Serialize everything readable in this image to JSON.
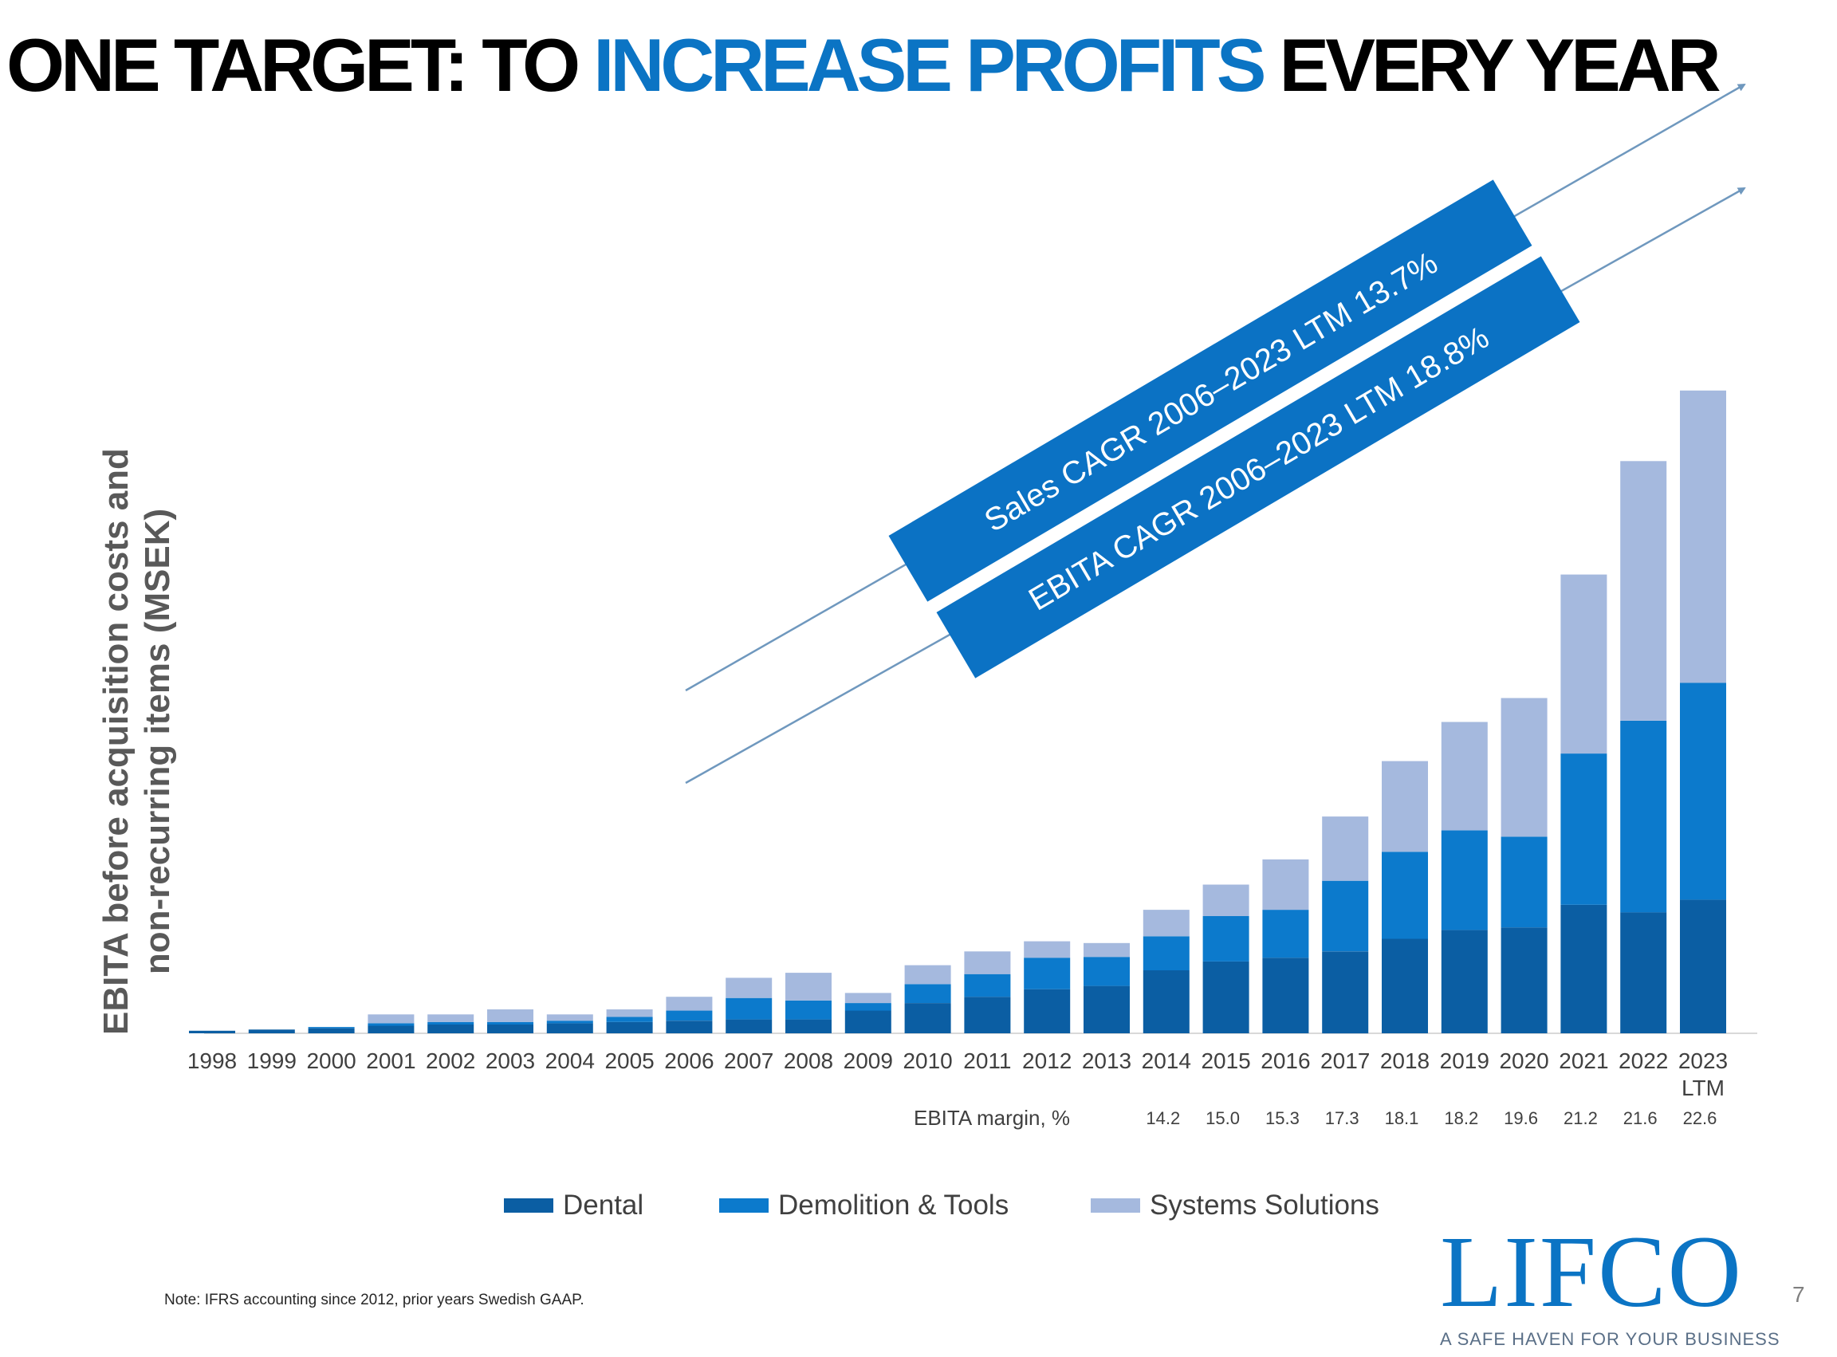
{
  "title": {
    "part1": "ONE TARGET: TO ",
    "part2": "INCREASE PROFITS",
    "part3": " EVERY YEAR"
  },
  "colors": {
    "accent": "#0b74c4",
    "dental": "#0b5ea3",
    "demolition": "#0c7acc",
    "systems": "#a5b9de",
    "banner": "#0b72c4",
    "arrow": "#6f98be"
  },
  "banners": {
    "sales": "Sales CAGR 2006–2023 LTM 13.7%",
    "ebita": "EBITA CAGR 2006–2023 LTM 18.8%"
  },
  "margin_label": "EBITA margin, %",
  "note": "Note: IFRS accounting since 2012, prior years Swedish GAAP.",
  "logo": {
    "name": "LIFCO",
    "tagline": "A SAFE HAVEN FOR YOUR BUSINESS"
  },
  "page_number": "7",
  "chart_data": {
    "type": "bar",
    "stacked": true,
    "title": "",
    "ylabel": "EBITA before acquisition costs and non-recurring items (MSEK)",
    "xlabel": "",
    "y_tick_labels_shown": false,
    "categories": [
      "1998",
      "1999",
      "2000",
      "2001",
      "2002",
      "2003",
      "2004",
      "2005",
      "2006",
      "2007",
      "2008",
      "2009",
      "2010",
      "2011",
      "2012",
      "2013",
      "2014",
      "2015",
      "2016",
      "2017",
      "2018",
      "2019",
      "2020",
      "2021",
      "2022",
      "2023\nLTM"
    ],
    "series": [
      {
        "name": "Dental",
        "values": [
          1.0,
          1.5,
          2.0,
          3.0,
          3.5,
          3.5,
          4.0,
          4.5,
          5.0,
          5.5,
          5.5,
          9.0,
          12.0,
          14.5,
          17.5,
          18.8,
          25.0,
          28.5,
          30.0,
          32.5,
          37.5,
          41.0,
          42.0,
          51.0,
          48.0,
          53.0
        ]
      },
      {
        "name": "Demolition & Tools",
        "values": [
          0.0,
          0.0,
          0.5,
          1.0,
          1.0,
          1.0,
          1.0,
          2.0,
          4.0,
          8.5,
          7.5,
          3.0,
          7.5,
          9.0,
          12.5,
          11.5,
          13.5,
          18.0,
          19.0,
          28.0,
          34.5,
          39.5,
          36.0,
          60.0,
          76.0,
          86.0
        ]
      },
      {
        "name": "Systems Solutions",
        "values": [
          0.0,
          0.0,
          0.0,
          3.5,
          3.0,
          5.0,
          2.5,
          3.0,
          5.5,
          8.0,
          11.0,
          4.0,
          7.5,
          9.0,
          6.5,
          5.5,
          10.5,
          12.5,
          20.0,
          25.5,
          36.0,
          43.0,
          55.0,
          71.0,
          103.0,
          116.0
        ]
      }
    ],
    "ebita_margin_percent": [
      null,
      null,
      null,
      null,
      null,
      null,
      null,
      null,
      null,
      null,
      null,
      null,
      null,
      null,
      null,
      null,
      14.2,
      15.0,
      15.3,
      17.3,
      18.1,
      18.2,
      19.6,
      21.2,
      21.6,
      22.6
    ],
    "ebita_margin_labels": [
      "",
      "",
      "",
      "",
      "",
      "",
      "",
      "",
      "",
      "",
      "",
      "",
      "",
      "",
      "",
      "",
      "14.2",
      "15.0",
      "15.3",
      "17.3",
      "18.1",
      "18.2",
      "19.6",
      "21.2",
      "21.6",
      "22.6"
    ],
    "ylim": [
      0,
      260
    ],
    "grid": false,
    "legend_position": "bottom"
  }
}
